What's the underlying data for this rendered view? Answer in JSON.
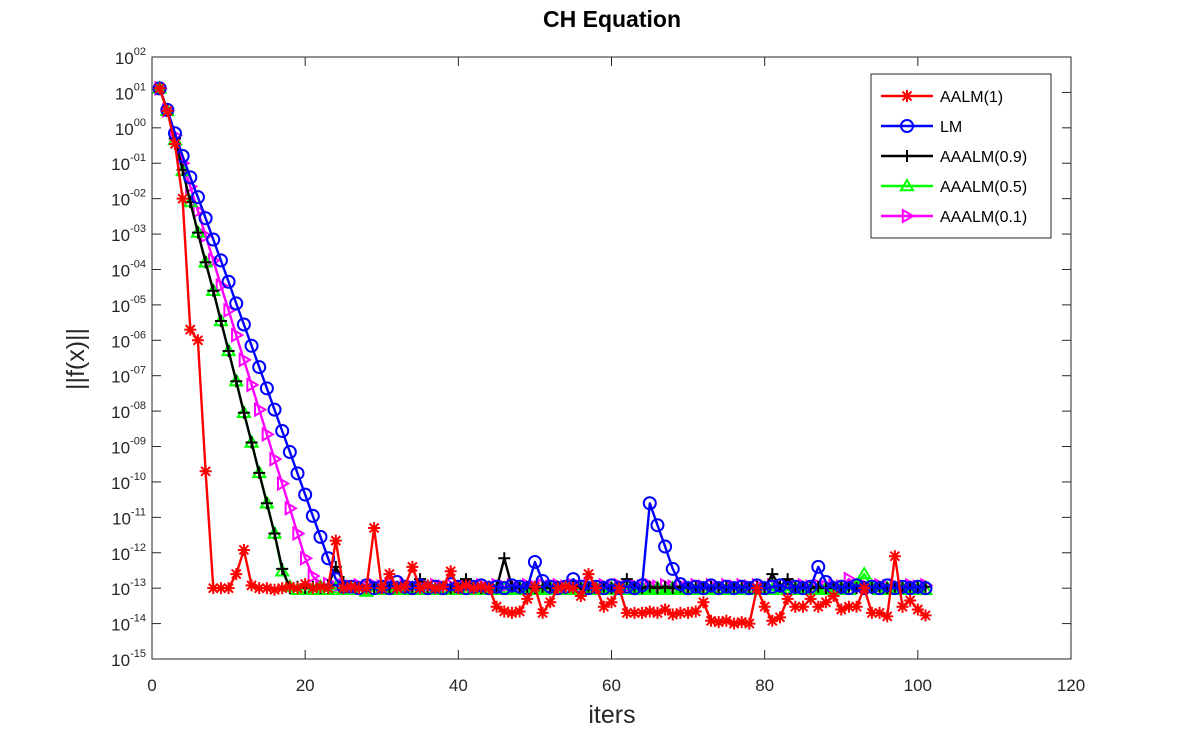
{
  "chart_data": {
    "type": "line",
    "title": "CH Equation",
    "xlabel": "iters",
    "ylabel": "||f(x)||",
    "yscale": "log",
    "xlim": [
      0,
      120
    ],
    "ylim_exp": [
      -15,
      2
    ],
    "xticks": [
      0,
      20,
      40,
      60,
      80,
      100,
      120
    ],
    "yticks_exp": [
      2,
      1,
      0,
      -1,
      -2,
      -3,
      -4,
      -5,
      -6,
      -7,
      -8,
      -9,
      -10,
      -11,
      -12,
      -13,
      -14,
      -15
    ],
    "grid": false,
    "legend_position": "top-right",
    "series": [
      {
        "name": "AALM(1)",
        "color": "#ff0000",
        "marker": "asterisk",
        "x": [
          1,
          2,
          3,
          4,
          5,
          6,
          7,
          8,
          9,
          10,
          11,
          12,
          13,
          14,
          15,
          16,
          17,
          18,
          19,
          20,
          21,
          22,
          23,
          24,
          25,
          26,
          27,
          28,
          29,
          30,
          31,
          32,
          33,
          34,
          35,
          36,
          37,
          38,
          39,
          40,
          41,
          42,
          43,
          44,
          45,
          46,
          47,
          48,
          49,
          50,
          51,
          52,
          53,
          54,
          55,
          56,
          57,
          58,
          59,
          60,
          61,
          62,
          63,
          64,
          65,
          66,
          67,
          68,
          69,
          70,
          71,
          72,
          73,
          74,
          75,
          76,
          77,
          78,
          79,
          80,
          81,
          82,
          83,
          84,
          85,
          86,
          87,
          88,
          89,
          90,
          91,
          92,
          93,
          94,
          95,
          96,
          97,
          98,
          99,
          100,
          101
        ],
        "y": [
          13,
          3,
          0.35,
          0.01,
          2e-06,
          1e-06,
          2e-10,
          1e-13,
          1e-13,
          1e-13,
          2.5e-13,
          1.2e-12,
          1.2e-13,
          1e-13,
          1e-13,
          9e-14,
          1e-13,
          1.1e-13,
          1e-13,
          1.3e-13,
          1e-13,
          1.1e-13,
          1e-13,
          2.2e-12,
          1e-13,
          1.1e-13,
          1e-13,
          1e-13,
          5e-12,
          1e-13,
          2.5e-13,
          1e-13,
          1.1e-13,
          4e-13,
          1e-13,
          1.2e-13,
          1e-13,
          1.1e-13,
          3e-13,
          1e-13,
          1.2e-13,
          1e-13,
          1.1e-13,
          1e-13,
          3e-14,
          2.2e-14,
          2e-14,
          2.2e-14,
          5e-14,
          1.1e-13,
          2e-14,
          4e-14,
          1e-13,
          1.1e-13,
          1e-13,
          6e-14,
          2.5e-13,
          1e-13,
          3e-14,
          4e-14,
          1e-13,
          2e-14,
          2e-14,
          2e-14,
          2.2e-14,
          2e-14,
          2.5e-14,
          1.8e-14,
          2e-14,
          2e-14,
          2.2e-14,
          4e-14,
          1.2e-14,
          1.1e-14,
          1.2e-14,
          1e-14,
          1.1e-14,
          1e-14,
          1e-13,
          3e-14,
          1.2e-14,
          1.5e-14,
          5e-14,
          3e-14,
          3e-14,
          5e-14,
          3e-14,
          4e-14,
          6e-14,
          2.5e-14,
          3e-14,
          3e-14,
          1e-13,
          2e-14,
          2e-14,
          1.6e-14,
          8e-13,
          3e-14,
          4.5e-14,
          2.5e-14,
          1.7e-14
        ]
      },
      {
        "name": "LM",
        "color": "#0000ff",
        "marker": "circle",
        "x": [
          1,
          2,
          3,
          4,
          5,
          6,
          7,
          8,
          9,
          10,
          11,
          12,
          13,
          14,
          15,
          16,
          17,
          18,
          19,
          20,
          21,
          22,
          23,
          24,
          25,
          26,
          27,
          28,
          29,
          30,
          31,
          32,
          33,
          34,
          35,
          36,
          37,
          38,
          39,
          40,
          41,
          42,
          43,
          44,
          45,
          46,
          47,
          48,
          49,
          50,
          51,
          52,
          53,
          54,
          55,
          56,
          57,
          58,
          59,
          60,
          61,
          62,
          63,
          64,
          65,
          66,
          67,
          68,
          69,
          70,
          71,
          72,
          73,
          74,
          75,
          76,
          77,
          78,
          79,
          80,
          81,
          82,
          83,
          84,
          85,
          86,
          87,
          88,
          89,
          90,
          91,
          92,
          93,
          94,
          95,
          96,
          97,
          98,
          99,
          100,
          101
        ],
        "y": [
          13,
          3.2,
          0.7,
          0.16,
          0.04,
          0.011,
          0.0028,
          0.0007,
          0.00018,
          4.5e-05,
          1.1e-05,
          2.8e-06,
          7e-07,
          1.75e-07,
          4.4e-08,
          1.1e-08,
          2.75e-09,
          7e-10,
          1.75e-10,
          4.4e-11,
          1.1e-11,
          2.8e-12,
          7e-13,
          1.8e-13,
          1.1e-13,
          1.1e-13,
          1e-13,
          1.2e-13,
          1e-13,
          1.1e-13,
          1e-13,
          1.5e-13,
          1.1e-13,
          1e-13,
          1.2e-13,
          1e-13,
          1.1e-13,
          1e-13,
          1.3e-13,
          1.1e-13,
          1e-13,
          1.1e-13,
          1.2e-13,
          1e-13,
          1.1e-13,
          1e-13,
          1.2e-13,
          1.1e-13,
          1e-13,
          5.5e-13,
          1.6e-13,
          1.1e-13,
          1e-13,
          1.1e-13,
          1.8e-13,
          1.1e-13,
          1e-13,
          1.1e-13,
          1e-13,
          1.2e-13,
          1e-13,
          1.1e-13,
          1e-13,
          1.2e-13,
          2.5e-11,
          6e-12,
          1.5e-12,
          3.5e-13,
          1.3e-13,
          1e-13,
          1.1e-13,
          1e-13,
          1.2e-13,
          1e-13,
          1.1e-13,
          1e-13,
          1.1e-13,
          1e-13,
          1.2e-13,
          1e-13,
          1.1e-13,
          1.2e-13,
          1e-13,
          1.1e-13,
          1e-13,
          1.1e-13,
          4e-13,
          1.5e-13,
          1e-13,
          1.1e-13,
          1e-13,
          1.2e-13,
          1e-13,
          1.1e-13,
          1e-13,
          1.2e-13,
          1e-13,
          1.1e-13,
          1e-13,
          1.1e-13,
          1e-13
        ]
      },
      {
        "name": "AAALM(0.9)",
        "color": "#000000",
        "marker": "plus",
        "x": [
          1,
          2,
          3,
          4,
          5,
          6,
          7,
          8,
          9,
          10,
          11,
          12,
          13,
          14,
          15,
          16,
          17,
          18,
          19,
          20,
          21,
          22,
          23,
          24,
          25,
          26,
          27,
          28,
          29,
          30,
          31,
          32,
          33,
          34,
          35,
          36,
          37,
          38,
          39,
          40,
          41,
          42,
          43,
          44,
          45,
          46,
          47,
          48,
          49,
          50,
          51,
          52,
          53,
          54,
          55,
          56,
          57,
          58,
          59,
          60,
          61,
          62,
          63,
          64,
          65,
          66,
          67,
          68,
          69,
          70,
          71,
          72,
          73,
          74,
          75,
          76,
          77,
          78,
          79,
          80,
          81,
          82,
          83,
          84,
          85,
          86,
          87,
          88,
          89,
          90,
          91,
          92,
          93,
          94,
          95,
          96,
          97,
          98,
          99,
          100,
          101
        ],
        "y": [
          13,
          3,
          0.5,
          0.065,
          0.008,
          0.0011,
          0.00016,
          2.5e-05,
          3.5e-06,
          5e-07,
          7e-08,
          9e-09,
          1.3e-09,
          1.8e-10,
          2.5e-11,
          3.5e-12,
          3.5e-13,
          1e-13,
          1.1e-13,
          1e-13,
          1.1e-13,
          1e-13,
          1.2e-13,
          4e-13,
          1.5e-13,
          1.1e-13,
          1e-13,
          1.1e-13,
          1e-13,
          1.1e-13,
          1e-13,
          1.1e-13,
          1e-13,
          1.1e-13,
          1.8e-13,
          1.1e-13,
          1e-13,
          1.1e-13,
          1e-13,
          1.1e-13,
          1.8e-13,
          1.1e-13,
          1e-13,
          1.1e-13,
          1e-13,
          7e-13,
          1.1e-13,
          1e-13,
          1.1e-13,
          1e-13,
          1.1e-13,
          1e-13,
          1.1e-13,
          1e-13,
          1.1e-13,
          1e-13,
          1.1e-13,
          1e-13,
          1.1e-13,
          1e-13,
          1.1e-13,
          1.8e-13,
          1.1e-13,
          1e-13,
          1.1e-13,
          1e-13,
          1.1e-13,
          1e-13,
          1.1e-13,
          1e-13,
          1.1e-13,
          1e-13,
          1.1e-13,
          1e-13,
          1.1e-13,
          1e-13,
          1.1e-13,
          1e-13,
          1.1e-13,
          1e-13,
          2.5e-13,
          1.1e-13,
          1.8e-13,
          1e-13,
          1.1e-13,
          1e-13,
          1.1e-13,
          1e-13,
          1.1e-13,
          1e-13,
          1.1e-13,
          1e-13,
          1.1e-13,
          1e-13,
          1.1e-13,
          1e-13,
          1.1e-13,
          1e-13,
          1.1e-13,
          1e-13,
          1.1e-13
        ]
      },
      {
        "name": "AAALM(0.5)",
        "color": "#00ff00",
        "marker": "triangle",
        "x": [
          1,
          2,
          3,
          4,
          5,
          6,
          7,
          8,
          9,
          10,
          11,
          12,
          13,
          14,
          15,
          16,
          17,
          18,
          19,
          20,
          21,
          22,
          23,
          24,
          25,
          26,
          27,
          28,
          29,
          30,
          31,
          32,
          33,
          34,
          35,
          36,
          37,
          38,
          39,
          40,
          41,
          42,
          43,
          44,
          45,
          46,
          47,
          48,
          49,
          50,
          51,
          52,
          53,
          54,
          55,
          56,
          57,
          58,
          59,
          60,
          61,
          62,
          63,
          64,
          65,
          66,
          67,
          68,
          69,
          70,
          71,
          72,
          73,
          74,
          75,
          76,
          77,
          78,
          79,
          80,
          81,
          82,
          83,
          84,
          85,
          86,
          87,
          88,
          89,
          90,
          91,
          92,
          93,
          94,
          95,
          96,
          97,
          98,
          99,
          100,
          101
        ],
        "y": [
          13,
          3,
          0.45,
          0.06,
          0.008,
          0.0011,
          0.00016,
          2.5e-05,
          3.5e-06,
          5e-07,
          7e-08,
          9e-09,
          1.3e-09,
          1.8e-10,
          2.5e-11,
          3.5e-12,
          3e-13,
          1.1e-13,
          9e-14,
          1e-13,
          9e-14,
          1.1e-13,
          9e-14,
          1e-13,
          9e-14,
          1e-13,
          9e-14,
          8e-14,
          9e-14,
          1e-13,
          9e-14,
          1e-13,
          9e-14,
          1e-13,
          9e-14,
          1e-13,
          9e-14,
          1e-13,
          9e-14,
          1e-13,
          9e-14,
          1e-13,
          9e-14,
          1e-13,
          9e-14,
          1e-13,
          9e-14,
          1e-13,
          9e-14,
          1e-13,
          9e-14,
          1e-13,
          9e-14,
          1e-13,
          9e-14,
          1e-13,
          9e-14,
          1e-13,
          9e-14,
          1e-13,
          9e-14,
          1e-13,
          9e-14,
          1e-13,
          9e-14,
          1e-13,
          9e-14,
          1e-13,
          9e-14,
          1e-13,
          9e-14,
          1e-13,
          9e-14,
          1e-13,
          9e-14,
          1e-13,
          9e-14,
          1e-13,
          9e-14,
          1e-13,
          9e-14,
          1e-13,
          9e-14,
          1e-13,
          9e-14,
          1e-13,
          9e-14,
          1e-13,
          9e-14,
          1e-13,
          9e-14,
          1.2e-13,
          2.5e-13,
          1.1e-13,
          9e-14,
          1e-13,
          9e-14,
          1e-13,
          9e-14,
          1e-13,
          9e-14
        ]
      },
      {
        "name": "AAALM(0.1)",
        "color": "#ff00ff",
        "marker": "triangle-right",
        "x": [
          1,
          2,
          3,
          4,
          5,
          6,
          7,
          8,
          9,
          10,
          11,
          12,
          13,
          14,
          15,
          16,
          17,
          18,
          19,
          20,
          21,
          22,
          23,
          24,
          25,
          26,
          27,
          28,
          29,
          30,
          31,
          32,
          33,
          34,
          35,
          36,
          37,
          38,
          39,
          40,
          41,
          42,
          43,
          44,
          45,
          46,
          47,
          48,
          49,
          50,
          51,
          52,
          53,
          54,
          55,
          56,
          57,
          58,
          59,
          60,
          61,
          62,
          63,
          64,
          65,
          66,
          67,
          68,
          69,
          70,
          71,
          72,
          73,
          74,
          75,
          76,
          77,
          78,
          79,
          80,
          81,
          82,
          83,
          84,
          85,
          86,
          87,
          88,
          89,
          90,
          91,
          92,
          93,
          94,
          95,
          96,
          97,
          98,
          99,
          100,
          101
        ],
        "y": [
          13,
          3.1,
          0.6,
          0.1,
          0.022,
          0.0045,
          0.0009,
          0.00018,
          3.5e-05,
          7e-06,
          1.4e-06,
          2.8e-07,
          5.5e-08,
          1.1e-08,
          2.2e-09,
          4.4e-10,
          9e-11,
          1.8e-11,
          3.5e-12,
          7e-13,
          2.2e-13,
          1.2e-13,
          1.3e-13,
          1.1e-13,
          1.2e-13,
          1.1e-13,
          1.2e-13,
          1.1e-13,
          1.2e-13,
          1.1e-13,
          1.2e-13,
          1.1e-13,
          1.2e-13,
          1.1e-13,
          1.2e-13,
          1.1e-13,
          1.2e-13,
          1.1e-13,
          1.2e-13,
          1.1e-13,
          1.2e-13,
          1.1e-13,
          1.2e-13,
          1.1e-13,
          1.2e-13,
          1.1e-13,
          1.2e-13,
          1.1e-13,
          1.2e-13,
          1.1e-13,
          1.2e-13,
          1.1e-13,
          1.2e-13,
          1.1e-13,
          1.2e-13,
          1.1e-13,
          1.2e-13,
          1.1e-13,
          1.2e-13,
          1.1e-13,
          1.2e-13,
          1.1e-13,
          1.2e-13,
          1.1e-13,
          1.2e-13,
          1.1e-13,
          1.2e-13,
          1.1e-13,
          1.2e-13,
          1.1e-13,
          1.2e-13,
          1.1e-13,
          1.2e-13,
          1.1e-13,
          1.2e-13,
          1.1e-13,
          1.2e-13,
          1.1e-13,
          1.2e-13,
          1.1e-13,
          1.2e-13,
          1.1e-13,
          1.2e-13,
          1.1e-13,
          1.2e-13,
          1.1e-13,
          1.2e-13,
          1.1e-13,
          1.2e-13,
          1.1e-13,
          1.8e-13,
          1.1e-13,
          1.2e-13,
          1.1e-13,
          1.2e-13,
          1.1e-13,
          1.2e-13,
          1.1e-13,
          1.2e-13,
          1.1e-13,
          1.2e-13
        ]
      }
    ]
  }
}
